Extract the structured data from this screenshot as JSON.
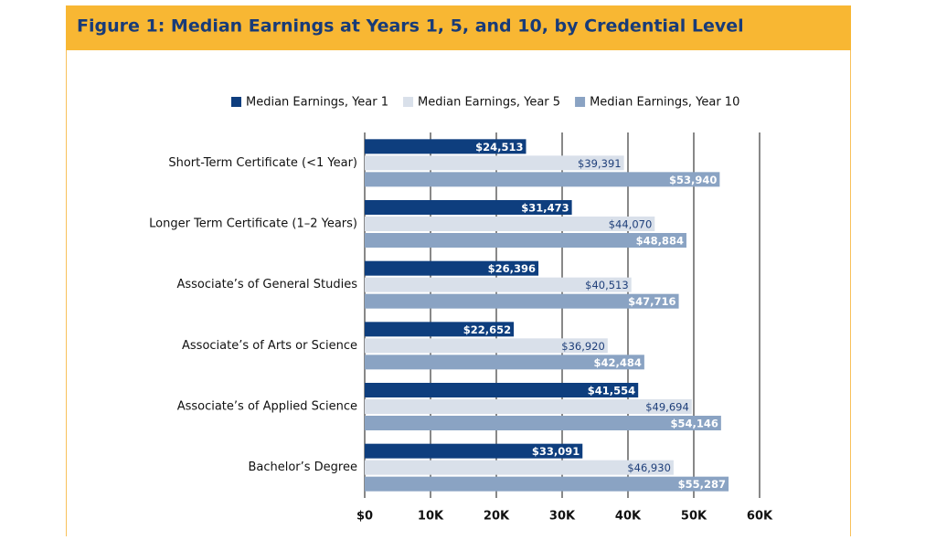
{
  "chart_data": {
    "type": "bar",
    "orientation": "horizontal",
    "title": "Figure 1: Median Earnings at Years 1, 5, and 10, by Credential Level",
    "categories": [
      "Short-Term Certificate (<1 Year)",
      "Longer Term Certificate (1–2 Years)",
      "Associate’s of General Studies",
      "Associate’s of Arts or Science",
      "Associate’s of Applied Science",
      "Bachelor’s Degree"
    ],
    "series": [
      {
        "name": "Median Earnings, Year 1",
        "color": "#0e3e7e",
        "label_color": "#ffffff",
        "values": [
          24513,
          31473,
          26396,
          22652,
          41554,
          33091
        ],
        "value_labels": [
          "$24,513",
          "$31,473",
          "$26,396",
          "$22,652",
          "$41,554",
          "$33,091"
        ]
      },
      {
        "name": "Median Earnings, Year 5",
        "color": "#d9e0ea",
        "label_color": "#1f3f7a",
        "values": [
          39391,
          44070,
          40513,
          36920,
          49694,
          46930
        ],
        "value_labels": [
          "$39,391",
          "$44,070",
          "$40,513",
          "$36,920",
          "$49,694",
          "$46,930"
        ]
      },
      {
        "name": "Median Earnings, Year 10",
        "color": "#8aa3c3",
        "label_color": "#ffffff",
        "values": [
          53940,
          48884,
          47716,
          42484,
          54146,
          55287
        ],
        "value_labels": [
          "$53,940",
          "$48,884",
          "$47,716",
          "$42,484",
          "$54,146",
          "$55,287"
        ]
      }
    ],
    "xlim": [
      0,
      60000
    ],
    "xticks": [
      {
        "value": 0,
        "label": "$0"
      },
      {
        "value": 10000,
        "label": "10K"
      },
      {
        "value": 20000,
        "label": "20K"
      },
      {
        "value": 30000,
        "label": "30K"
      },
      {
        "value": 40000,
        "label": "40K"
      },
      {
        "value": 50000,
        "label": "50K"
      },
      {
        "value": 60000,
        "label": "60K"
      }
    ],
    "grid": true,
    "legend": "top"
  }
}
